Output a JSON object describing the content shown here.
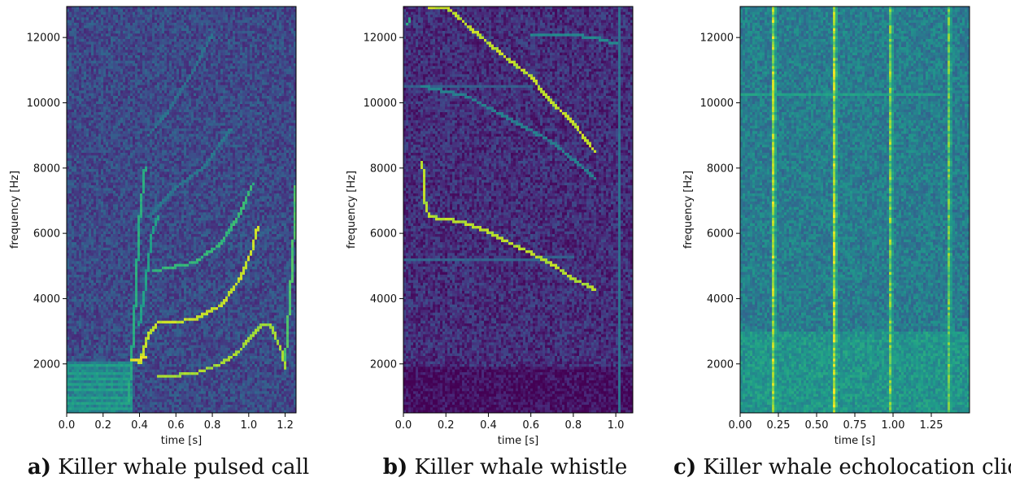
{
  "chart_data": [
    {
      "type": "heatmap",
      "caption_letter": "a)",
      "caption_text": " Killer whale pulsed call",
      "xlabel": "time [s]",
      "ylabel": "frequency [Hz]",
      "xlim": [
        0.0,
        1.26
      ],
      "ylim": [
        500,
        12950
      ],
      "xticks": [
        0.0,
        0.2,
        0.4,
        0.6,
        0.8,
        1.0,
        1.2
      ],
      "xtick_labels": [
        "0.0",
        "0.2",
        "0.4",
        "0.6",
        "0.8",
        "1.0",
        "1.2"
      ],
      "yticks": [
        2000,
        4000,
        6000,
        8000,
        10000,
        12000
      ],
      "ytick_labels": [
        "2000",
        "4000",
        "6000",
        "8000",
        "10000",
        "12000"
      ],
      "colormap": "viridis",
      "background_level": 0.22,
      "low_band": {
        "max_freq": 2100,
        "x_end": 0.36,
        "level": 0.45
      },
      "features": [
        {
          "kind": "harmonics",
          "x0": 0.0,
          "x1": 0.36,
          "f0": 600,
          "step": 190,
          "count": 8,
          "level": 0.55
        },
        {
          "kind": "curve",
          "points": [
            [
              0.36,
              2100
            ],
            [
              0.4,
              2150
            ],
            [
              0.44,
              2200
            ]
          ],
          "level": 0.95
        },
        {
          "kind": "curve",
          "points": [
            [
              0.4,
              2000
            ],
            [
              0.45,
              2900
            ],
            [
              0.5,
              3250
            ],
            [
              0.7,
              3350
            ],
            [
              0.85,
              3800
            ],
            [
              0.95,
              4600
            ],
            [
              1.02,
              5500
            ],
            [
              1.05,
              6200
            ]
          ],
          "level": 0.9
        },
        {
          "kind": "curve",
          "points": [
            [
              0.5,
              1600
            ],
            [
              0.7,
              1700
            ],
            [
              0.85,
              2000
            ],
            [
              0.95,
              2400
            ],
            [
              1.02,
              2900
            ],
            [
              1.06,
              3150
            ],
            [
              1.12,
              3200
            ],
            [
              1.18,
              2400
            ],
            [
              1.2,
              1900
            ]
          ],
          "level": 0.85
        },
        {
          "kind": "curve",
          "points": [
            [
              0.48,
              4850
            ],
            [
              0.7,
              5100
            ],
            [
              0.85,
              5700
            ],
            [
              0.95,
              6600
            ],
            [
              1.02,
              7500
            ]
          ],
          "level": 0.65
        },
        {
          "kind": "curve",
          "points": [
            [
              0.4,
              3200
            ],
            [
              0.43,
              4300
            ],
            [
              0.47,
              6000
            ],
            [
              0.5,
              6500
            ]
          ],
          "level": 0.55
        },
        {
          "kind": "curve",
          "points": [
            [
              0.34,
              800
            ],
            [
              0.37,
              3200
            ],
            [
              0.4,
              6400
            ],
            [
              0.43,
              8000
            ]
          ],
          "level": 0.6
        },
        {
          "kind": "curve",
          "points": [
            [
              0.45,
              6500
            ],
            [
              0.6,
              7400
            ],
            [
              0.75,
              8000
            ],
            [
              0.9,
              9200
            ]
          ],
          "level": 0.38
        },
        {
          "kind": "curve",
          "points": [
            [
              0.45,
              9000
            ],
            [
              0.55,
              9700
            ],
            [
              0.7,
              11000
            ],
            [
              0.8,
              12100
            ]
          ],
          "level": 0.36
        },
        {
          "kind": "curve",
          "points": [
            [
              1.2,
              2000
            ],
            [
              1.22,
              3500
            ],
            [
              1.24,
              5000
            ],
            [
              1.26,
              7500
            ]
          ],
          "level": 0.7
        }
      ]
    },
    {
      "type": "heatmap",
      "caption_letter": "b)",
      "caption_text": " Killer whale whistle",
      "xlabel": "time [s]",
      "ylabel": "frequency [Hz]",
      "xlim": [
        0.0,
        1.08
      ],
      "ylim": [
        500,
        12950
      ],
      "xticks": [
        0.0,
        0.2,
        0.4,
        0.6,
        0.8,
        1.0
      ],
      "xtick_labels": [
        "0.0",
        "0.2",
        "0.4",
        "0.6",
        "0.8",
        "1.0"
      ],
      "yticks": [
        2000,
        4000,
        6000,
        8000,
        10000,
        12000
      ],
      "ytick_labels": [
        "2000",
        "4000",
        "6000",
        "8000",
        "10000",
        "12000"
      ],
      "colormap": "viridis",
      "background_level": 0.13,
      "low_band": {
        "max_freq": 1900,
        "x_end": 1.08,
        "level": 0.04
      },
      "features": [
        {
          "kind": "curve",
          "points": [
            [
              0.12,
              12900
            ],
            [
              0.2,
              12950
            ],
            [
              0.35,
              12100
            ],
            [
              0.5,
              11300
            ],
            [
              0.6,
              10800
            ],
            [
              0.7,
              10000
            ],
            [
              0.8,
              9400
            ],
            [
              0.9,
              8500
            ]
          ],
          "level": 0.9
        },
        {
          "kind": "curve",
          "points": [
            [
              0.09,
              8200
            ],
            [
              0.1,
              7000
            ],
            [
              0.12,
              6500
            ],
            [
              0.2,
              6450
            ],
            [
              0.3,
              6300
            ],
            [
              0.4,
              6050
            ],
            [
              0.5,
              5700
            ],
            [
              0.6,
              5400
            ],
            [
              0.7,
              5050
            ],
            [
              0.8,
              4600
            ],
            [
              0.9,
              4300
            ]
          ],
          "level": 0.88
        },
        {
          "kind": "curve",
          "points": [
            [
              0.09,
              10500
            ],
            [
              0.3,
              10200
            ],
            [
              0.5,
              9500
            ],
            [
              0.7,
              8800
            ],
            [
              0.9,
              7700
            ]
          ],
          "level": 0.42
        },
        {
          "kind": "curve",
          "points": [
            [
              0.6,
              12050
            ],
            [
              0.75,
              12100
            ],
            [
              0.9,
              12000
            ],
            [
              1.0,
              11800
            ]
          ],
          "level": 0.45
        },
        {
          "kind": "curve",
          "points": [
            [
              0.0,
              10500
            ],
            [
              0.3,
              10480
            ],
            [
              0.6,
              10480
            ]
          ],
          "level": 0.28
        },
        {
          "kind": "curve",
          "points": [
            [
              0.0,
              5200
            ],
            [
              0.4,
              5200
            ],
            [
              0.8,
              5250
            ]
          ],
          "level": 0.3
        },
        {
          "kind": "curve",
          "points": [
            [
              1.02,
              500
            ],
            [
              1.02,
              12950
            ]
          ],
          "level": 0.35
        },
        {
          "kind": "curve",
          "points": [
            [
              0.02,
              12400
            ],
            [
              0.03,
              12600
            ]
          ],
          "level": 0.6
        }
      ]
    },
    {
      "type": "heatmap",
      "caption_letter": "c)",
      "caption_text": " Killer whale echolocation click",
      "xlabel": "time [s]",
      "ylabel": "frequency [Hz]",
      "xlim": [
        0.0,
        1.5
      ],
      "ylim": [
        500,
        12950
      ],
      "xticks": [
        0.0,
        0.25,
        0.5,
        0.75,
        1.0,
        1.25
      ],
      "xtick_labels": [
        "0.00",
        "0.25",
        "0.50",
        "0.75",
        "1.00",
        "1.25"
      ],
      "yticks": [
        2000,
        4000,
        6000,
        8000,
        10000,
        12000
      ],
      "ytick_labels": [
        "2000",
        "4000",
        "6000",
        "8000",
        "10000",
        "12000"
      ],
      "colormap": "viridis",
      "background_level": 0.42,
      "low_band": {
        "max_freq": 3000,
        "x_end": 1.5,
        "level": 0.52
      },
      "features": [
        {
          "kind": "vline",
          "x": 0.22,
          "level": 0.88
        },
        {
          "kind": "vline",
          "x": 0.62,
          "level": 0.9
        },
        {
          "kind": "vline",
          "x": 0.98,
          "level": 0.82
        },
        {
          "kind": "vline",
          "x": 1.36,
          "level": 0.78
        },
        {
          "kind": "curve",
          "points": [
            [
              0.0,
              10280
            ],
            [
              0.75,
              10280
            ],
            [
              1.3,
              10290
            ]
          ],
          "level": 0.55
        }
      ]
    }
  ]
}
